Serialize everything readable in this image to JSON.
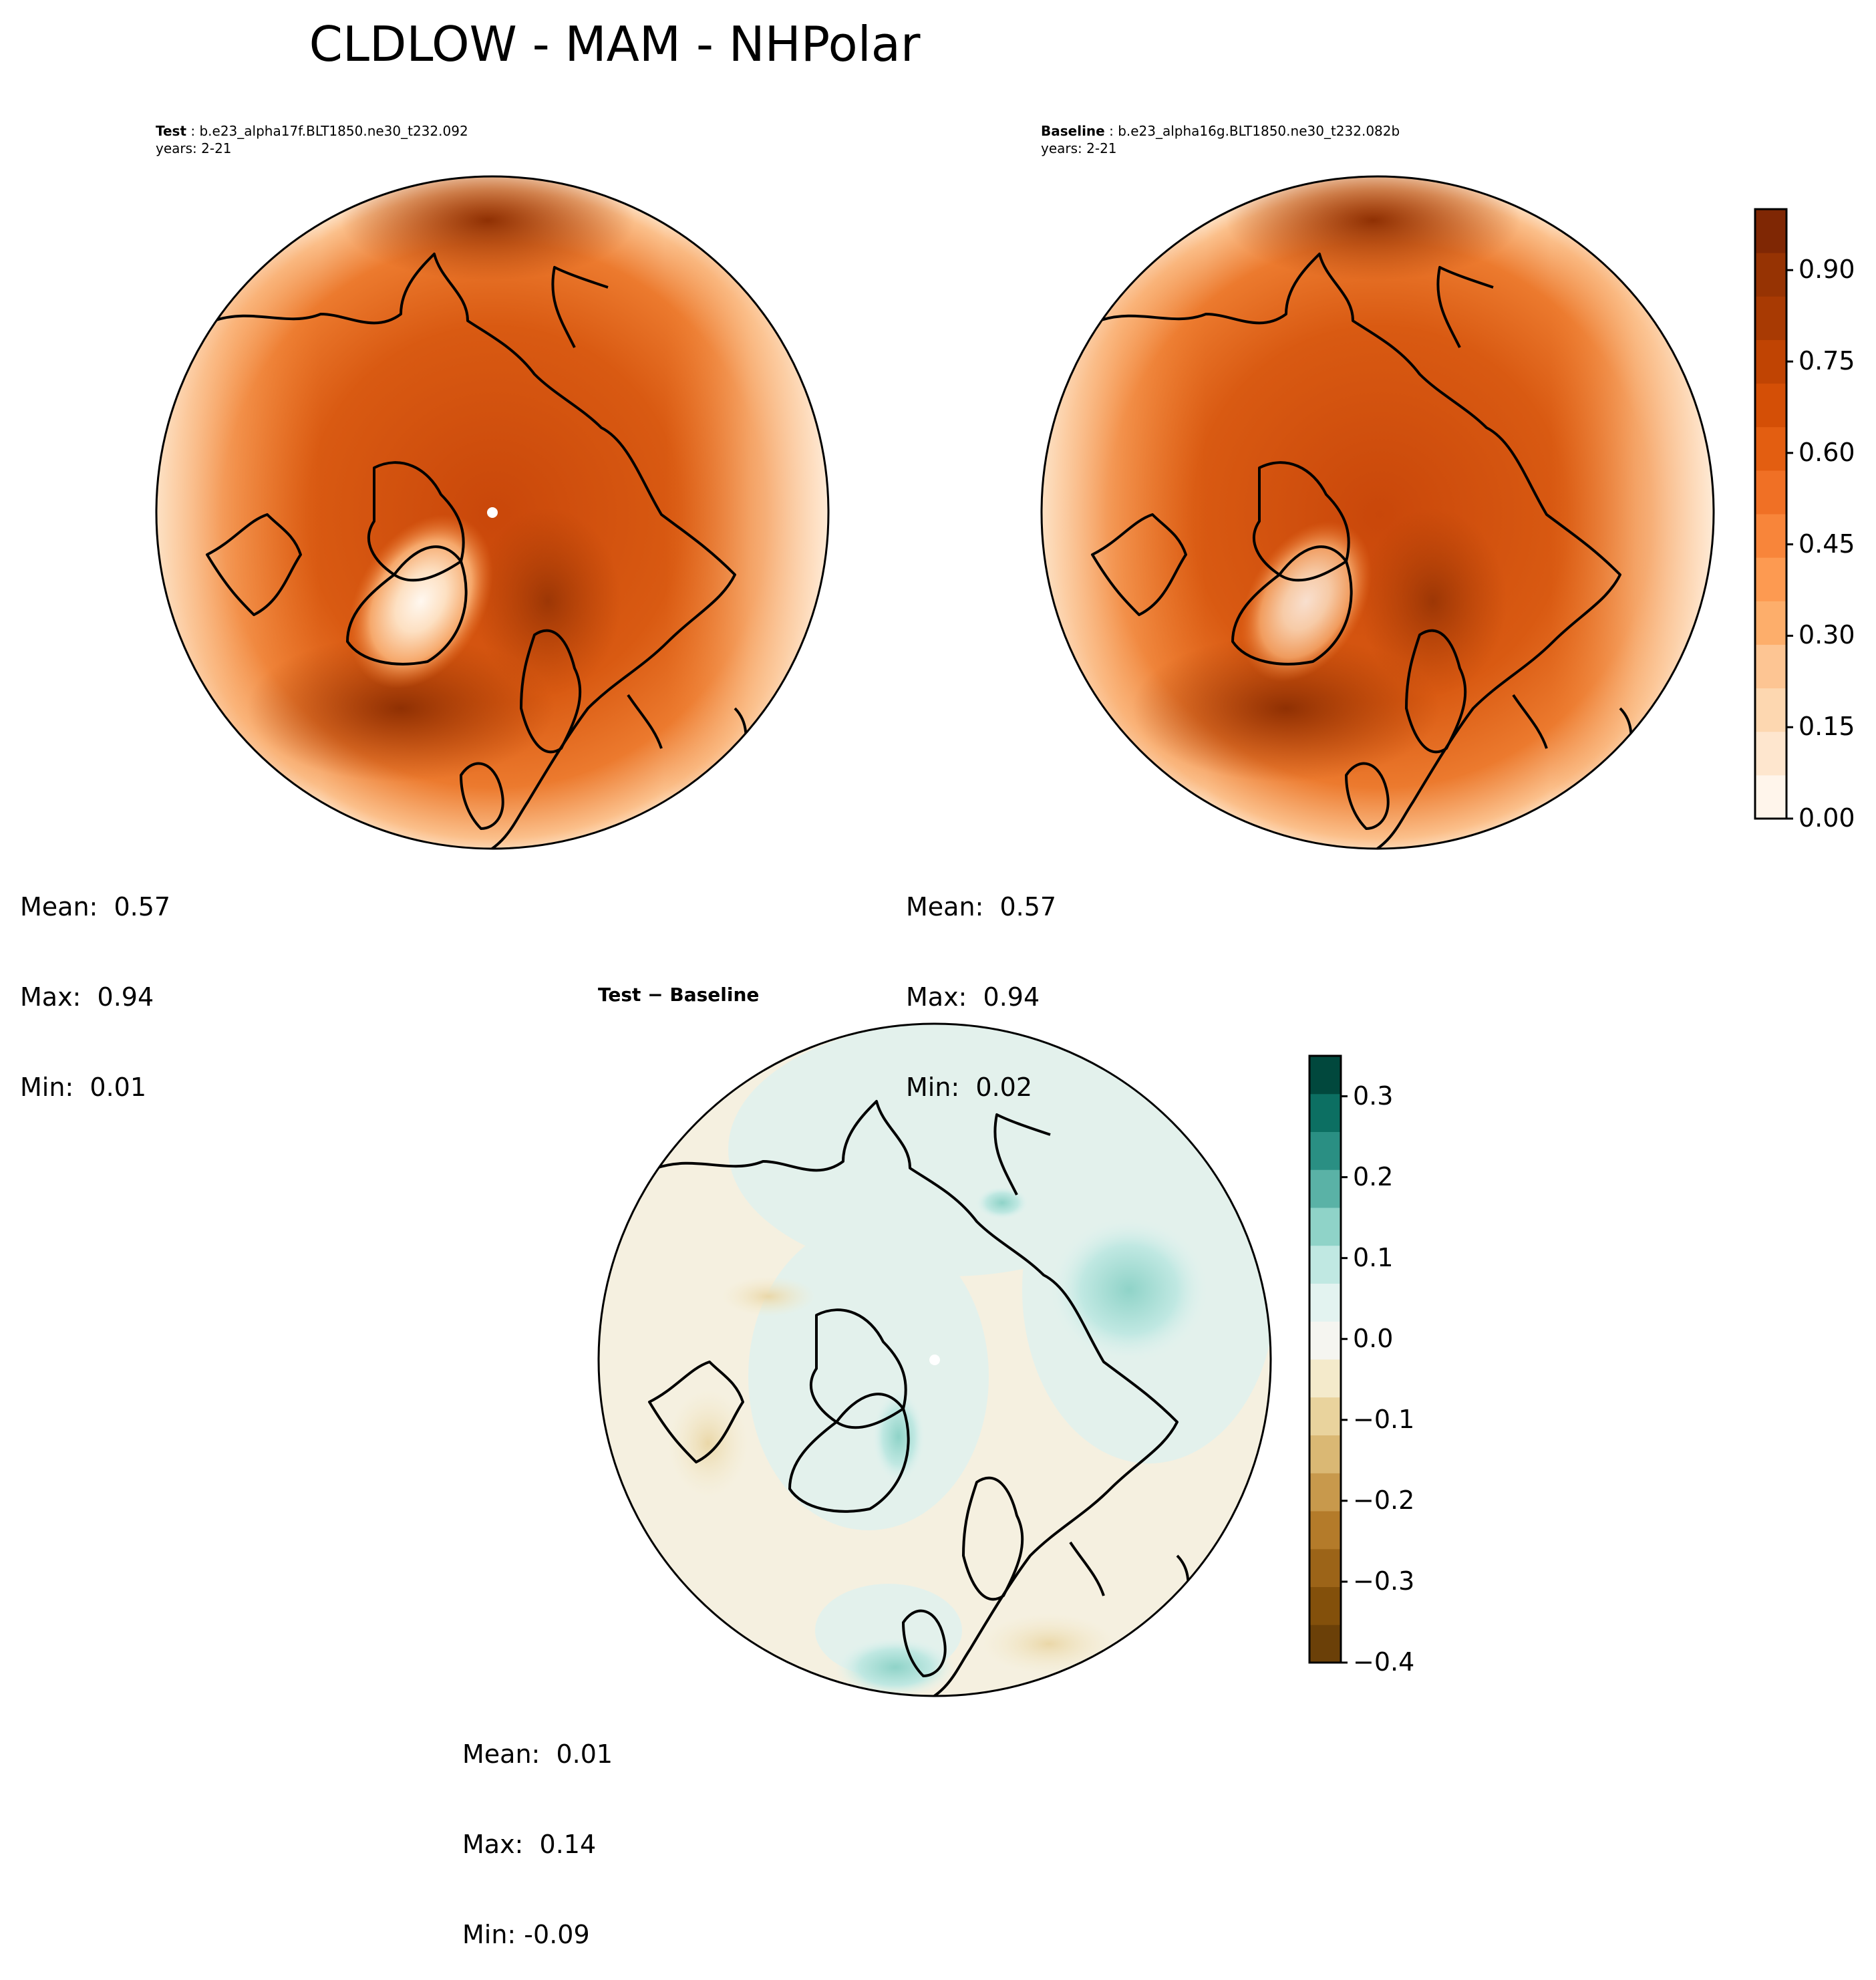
{
  "title": "CLDLOW - MAM - NHPolar",
  "panels": [
    {
      "id": "test",
      "label_bold": "Test",
      "label_rest": " : b.e23_alpha17f.BLT1850.ne30_t232.092",
      "years": "years: 2-21",
      "stats": {
        "mean": "Mean:  0.57",
        "max": "Max:  0.94",
        "min": "Min:  0.01"
      }
    },
    {
      "id": "baseline",
      "label_bold": "Baseline",
      "label_rest": " : b.e23_alpha16g.BLT1850.ne30_t232.082b",
      "years": "years: 2-21",
      "stats": {
        "mean": "Mean:  0.57",
        "max": "Max:  0.94",
        "min": "Min:  0.02"
      }
    },
    {
      "id": "diff",
      "label_bold": "Test − Baseline",
      "stats": {
        "mean": "Mean:  0.01",
        "max": "Max:  0.14",
        "min": "Min: -0.09"
      }
    }
  ],
  "colorbars": {
    "sequential": {
      "ticks": [
        "0.00",
        "0.15",
        "0.30",
        "0.45",
        "0.60",
        "0.75",
        "0.90"
      ],
      "range": [
        0,
        1.0
      ],
      "colors": [
        "#fff5eb",
        "#fee6ce",
        "#fdd7b0",
        "#fdc593",
        "#fdae6b",
        "#fd9a51",
        "#f8853a",
        "#f07025",
        "#e35e11",
        "#d44f06",
        "#c04403",
        "#a83a03",
        "#963303",
        "#7f2704"
      ]
    },
    "diverging": {
      "ticks": [
        "0.3",
        "0.2",
        "0.1",
        "0.0",
        "−0.1",
        "−0.2",
        "−0.3",
        "−0.4"
      ],
      "range": [
        -0.4,
        0.35
      ],
      "colors": [
        "#6b4008",
        "#83500b",
        "#9c6418",
        "#b47b2a",
        "#c8994c",
        "#dab874",
        "#e9d39d",
        "#f4eacb",
        "#f5f5f0",
        "#e3f3f0",
        "#c0e8e2",
        "#8fd3c8",
        "#5ab2a6",
        "#2a8f83",
        "#0c6f62",
        "#01483d"
      ]
    }
  }
}
